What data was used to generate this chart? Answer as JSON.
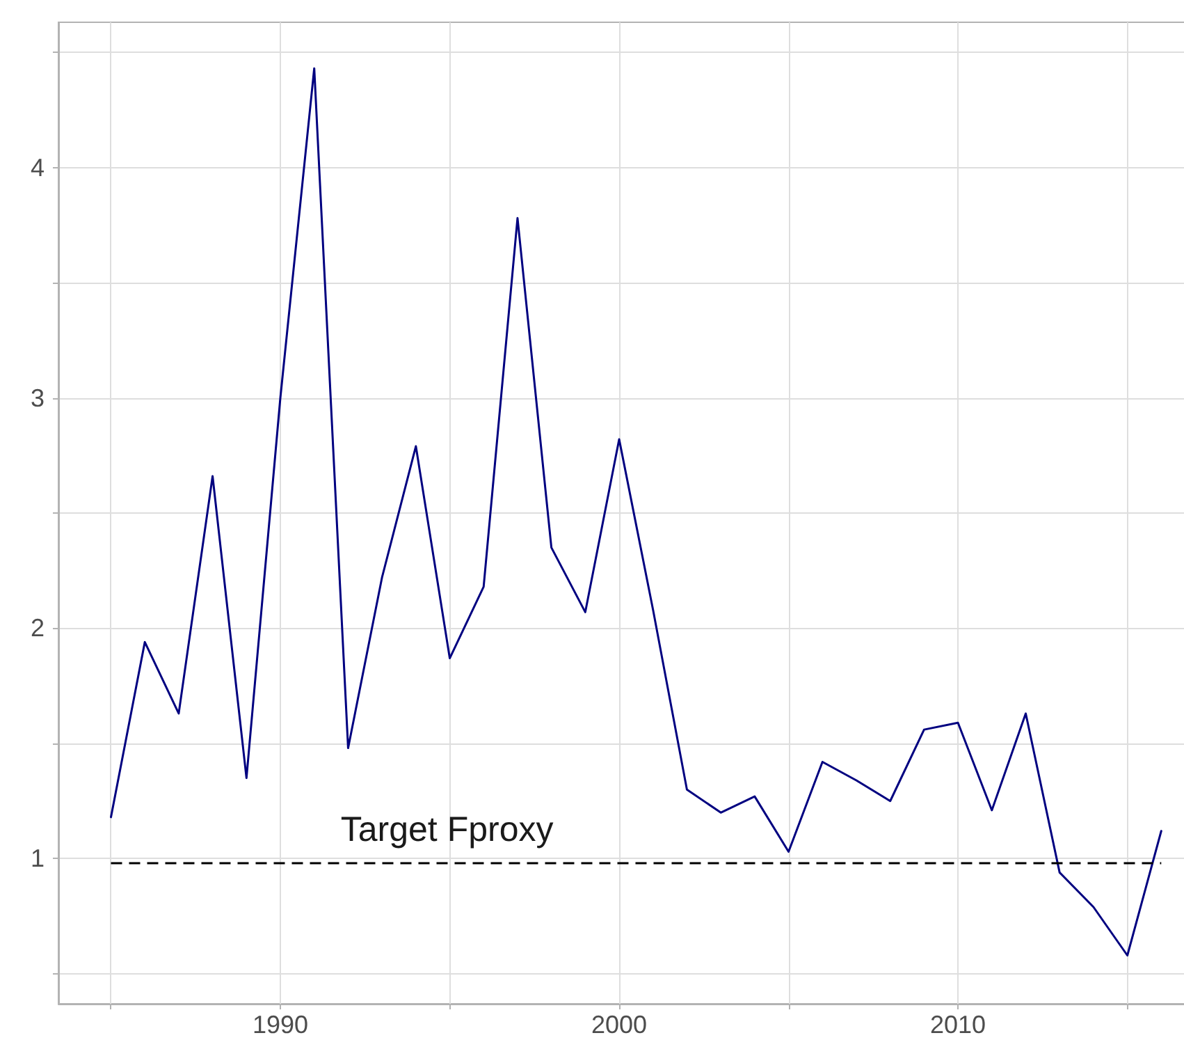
{
  "chart_data": {
    "type": "line",
    "x": [
      1985,
      1986,
      1987,
      1988,
      1989,
      1990,
      1991,
      1992,
      1993,
      1994,
      1995,
      1996,
      1997,
      1998,
      1999,
      2000,
      2001,
      2002,
      2003,
      2004,
      2005,
      2006,
      2007,
      2008,
      2009,
      2010,
      2011,
      2012,
      2013,
      2014,
      2015,
      2016
    ],
    "series": [
      {
        "color": "#000080",
        "values": [
          1.18,
          1.94,
          1.63,
          2.66,
          1.35,
          3.0,
          4.43,
          1.48,
          2.22,
          2.79,
          1.87,
          2.18,
          3.78,
          2.35,
          2.07,
          2.82,
          2.08,
          1.3,
          1.2,
          1.27,
          1.03,
          1.42,
          1.34,
          1.25,
          1.56,
          1.59,
          1.21,
          1.63,
          0.94,
          0.79,
          0.58,
          1.12
        ]
      }
    ],
    "xlim": [
      1983.45,
      2017
    ],
    "ylim": [
      0.37,
      4.63
    ],
    "xticks": [
      {
        "value": 1985,
        "label": null
      },
      1990,
      {
        "value": 1995,
        "label": null
      },
      2000,
      {
        "value": 2005,
        "label": null
      },
      2010,
      {
        "value": 2015,
        "label": null
      }
    ],
    "yticks": [
      {
        "value": 0.5,
        "label": null
      },
      1,
      {
        "value": 1.5,
        "label": null
      },
      2,
      {
        "value": 2.5,
        "label": null
      },
      3,
      {
        "value": 3.5,
        "label": null
      },
      4,
      {
        "value": 4.5,
        "label": null
      }
    ],
    "grid": true,
    "marker": "none",
    "line_style": "solid",
    "ref_lines": [
      {
        "axis": "y",
        "value": 0.98,
        "label": "Target Fproxy",
        "color": "#000000",
        "line_style": "dashed"
      }
    ]
  }
}
